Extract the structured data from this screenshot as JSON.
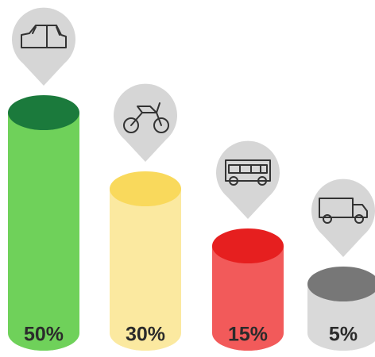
{
  "chart_data": {
    "type": "bar",
    "categories": [
      null,
      null,
      null,
      null
    ],
    "values": [
      50,
      30,
      15,
      5
    ],
    "value_labels": [
      "50%",
      "30%",
      "15%",
      "5%"
    ],
    "colors": [
      "#6fd15a",
      "#fbe9a0",
      "#f25a5a",
      "#d9d9d9"
    ],
    "top_colors": [
      "#1b7a3c",
      "#f9d95c",
      "#e61f1f",
      "#777777"
    ]
  }
}
